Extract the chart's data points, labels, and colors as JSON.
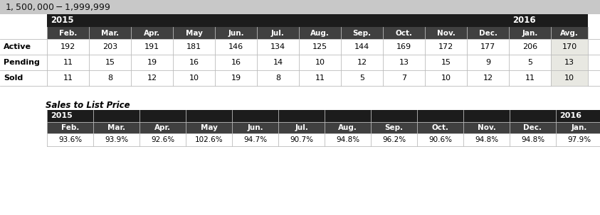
{
  "title": "$1,500,000 - $1,999,999",
  "title_bg": "#c8c8c8",
  "header_bg": "#1c1c1c",
  "subheader_bg": "#404040",
  "avg_bg": "#e8e8e2",
  "months": [
    "Feb.",
    "Mar.",
    "Apr.",
    "May",
    "Jun.",
    "Jul.",
    "Aug.",
    "Sep.",
    "Oct.",
    "Nov.",
    "Dec.",
    "Jan.",
    "Avg."
  ],
  "rows": [
    {
      "label": "Active",
      "values": [
        "192",
        "203",
        "191",
        "181",
        "146",
        "134",
        "125",
        "144",
        "169",
        "172",
        "177",
        "206",
        "170"
      ]
    },
    {
      "label": "Pending",
      "values": [
        "11",
        "15",
        "19",
        "16",
        "16",
        "14",
        "10",
        "12",
        "13",
        "15",
        "9",
        "5",
        "13"
      ]
    },
    {
      "label": "Sold",
      "values": [
        "11",
        "8",
        "12",
        "10",
        "19",
        "8",
        "11",
        "5",
        "7",
        "10",
        "12",
        "11",
        "10"
      ]
    }
  ],
  "sales_label": "Sales to List Price",
  "sales_months": [
    "Feb.",
    "Mar.",
    "Apr.",
    "May",
    "Jun.",
    "Jul.",
    "Aug.",
    "Sep.",
    "Oct.",
    "Nov.",
    "Dec.",
    "Jan."
  ],
  "sales_values": [
    "93.6%",
    "93.9%",
    "92.6%",
    "102.6%",
    "94.7%",
    "90.7%",
    "94.8%",
    "96.2%",
    "90.6%",
    "94.8%",
    "94.8%",
    "97.9%"
  ]
}
